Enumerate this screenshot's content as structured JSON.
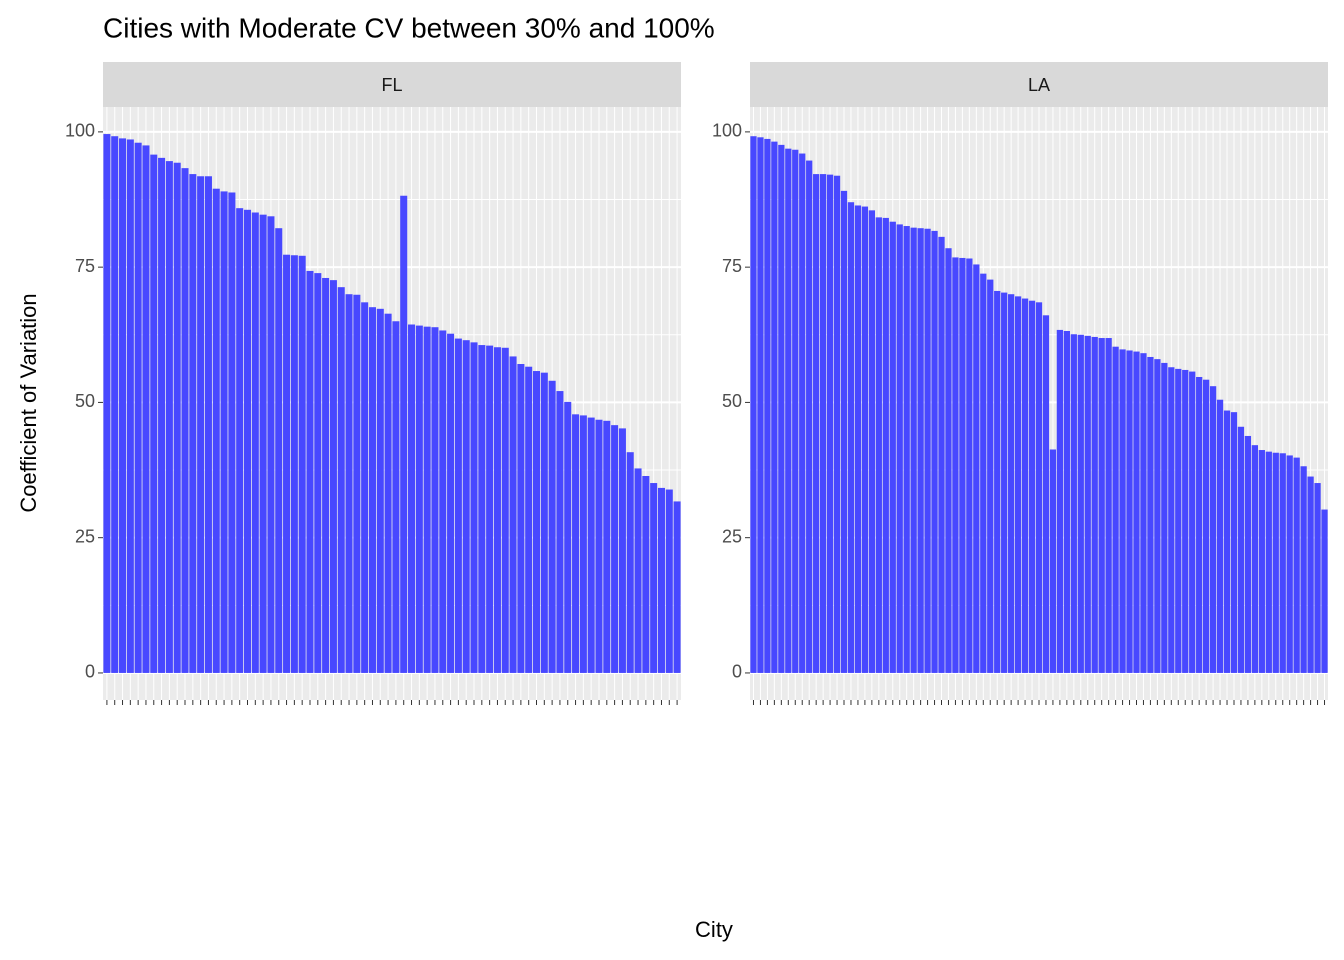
{
  "chart_data": {
    "type": "bar",
    "title": "Cities with  Moderate CV between 30% and 100%",
    "x_label": "City",
    "y_label": "Coefficient of Variation",
    "color": "#4848ff",
    "ylim": [
      -5,
      104.6
    ],
    "yticks": [
      0,
      25,
      50,
      75,
      100
    ],
    "grid": true,
    "facets": [
      {
        "name": "FL",
        "categories": [
          null,
          null,
          null,
          null,
          null,
          null,
          null,
          null,
          null,
          null,
          null,
          null,
          null,
          null,
          null,
          null,
          null,
          null,
          null,
          null,
          null,
          null,
          null,
          null,
          null,
          null,
          null,
          null,
          null,
          null,
          null,
          null,
          null,
          null,
          null,
          null,
          null,
          null,
          null,
          null,
          null,
          null,
          null,
          null,
          null,
          null,
          null,
          null,
          null,
          null,
          null,
          null,
          null,
          null,
          null,
          null,
          null,
          null,
          null,
          null,
          null,
          null,
          null,
          null,
          null,
          null,
          null,
          null,
          null,
          null,
          null,
          null,
          null,
          null
        ],
        "values": [
          99.6,
          99.2,
          98.8,
          98.6,
          98,
          97.5,
          95.8,
          95.2,
          94.6,
          94.3,
          93.3,
          92.2,
          91.8,
          91.8,
          89.5,
          89,
          88.8,
          85.9,
          85.6,
          85.1,
          84.7,
          84.4,
          82.2,
          77.3,
          77.2,
          77.1,
          74.3,
          73.9,
          73,
          72.6,
          71.3,
          70,
          69.9,
          68.5,
          67.6,
          67.3,
          66.4,
          65,
          88.2,
          64.4,
          64.2,
          64,
          63.9,
          63.3,
          62.7,
          61.8,
          61.5,
          61.1,
          60.6,
          60.5,
          60.2,
          60.1,
          58.5,
          57.1,
          56.6,
          55.8,
          55.5,
          54,
          52.1,
          50.1,
          47.8,
          47.6,
          47.2,
          46.8,
          46.6,
          45.8,
          45.2,
          40.8,
          37.8,
          36.4,
          35.1,
          34.2,
          33.9,
          31.7
        ]
      },
      {
        "name": "LA",
        "categories": [
          null,
          null,
          null,
          null,
          null,
          null,
          null,
          null,
          null,
          null,
          null,
          null,
          null,
          null,
          null,
          null,
          null,
          null,
          null,
          null,
          null,
          null,
          null,
          null,
          null,
          null,
          null,
          null,
          null,
          null,
          null,
          null,
          null,
          null,
          null,
          null,
          null,
          null,
          null,
          null,
          null,
          null,
          null,
          null,
          null,
          null,
          null,
          null,
          null,
          null,
          null,
          null,
          null,
          null,
          null,
          null,
          null,
          null,
          null,
          null,
          null,
          null,
          null,
          null,
          null,
          null,
          null,
          null,
          null,
          null,
          null,
          null,
          null,
          null,
          null,
          null,
          null,
          null,
          null,
          null,
          null,
          null,
          null
        ],
        "values": [
          99.2,
          99,
          98.7,
          98.2,
          97.6,
          96.9,
          96.7,
          96,
          94.7,
          92.2,
          92.2,
          92.1,
          91.9,
          89.1,
          87,
          86.4,
          86.2,
          85.5,
          84.2,
          84.1,
          83.4,
          82.9,
          82.6,
          82.3,
          82.2,
          82.1,
          81.7,
          80.6,
          78.5,
          76.8,
          76.7,
          76.6,
          75.5,
          73.8,
          72.7,
          70.6,
          70.3,
          70,
          69.6,
          69.2,
          68.8,
          68.5,
          66.1,
          41.3,
          63.4,
          63.2,
          62.6,
          62.5,
          62.3,
          62.1,
          61.9,
          61.9,
          60.3,
          59.8,
          59.6,
          59.4,
          59.1,
          58.4,
          58,
          57.3,
          56.5,
          56.2,
          56,
          55.7,
          54.7,
          54.2,
          53,
          50.5,
          48.5,
          48.2,
          45.5,
          43.8,
          42.1,
          41.2,
          40.9,
          40.7,
          40.6,
          40.2,
          39.8,
          38.2,
          36.3,
          35.1,
          30.2
        ]
      }
    ]
  }
}
